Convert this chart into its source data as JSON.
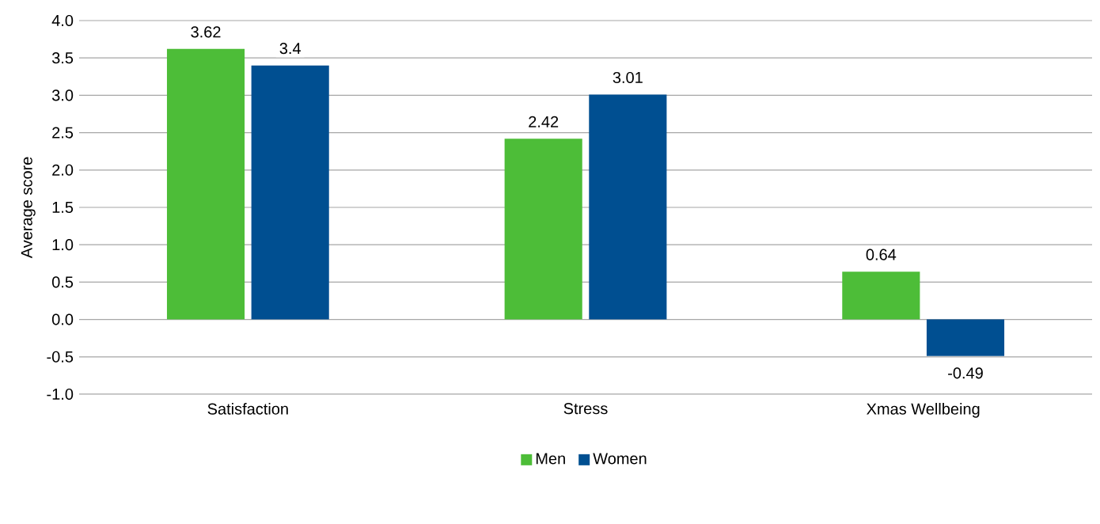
{
  "chart_data": {
    "type": "bar",
    "ylabel": "Average score",
    "categories": [
      "Satisfaction",
      "Stress",
      "Xmas Wellbeing"
    ],
    "series": [
      {
        "name": "Men",
        "color": "#4dbd38",
        "values": [
          3.62,
          2.42,
          0.64
        ]
      },
      {
        "name": "Women",
        "color": "#004f91",
        "values": [
          3.4,
          3.01,
          -0.49
        ]
      }
    ],
    "ylim": [
      -1,
      4
    ],
    "yticks": [
      {
        "value": -1,
        "label": "-1.0"
      },
      {
        "value": -0.5,
        "label": "-0.5"
      },
      {
        "value": 0,
        "label": "0.0"
      },
      {
        "value": 0.5,
        "label": "0.5"
      },
      {
        "value": 1,
        "label": "1.0"
      },
      {
        "value": 1.5,
        "label": "1.5"
      },
      {
        "value": 2,
        "label": "2.0"
      },
      {
        "value": 2.5,
        "label": "2.5"
      },
      {
        "value": 3,
        "label": "3.0"
      },
      {
        "value": 3.5,
        "label": "3.5"
      },
      {
        "value": 4,
        "label": "4.0"
      }
    ],
    "grid": "y",
    "legend": "bottom",
    "data_labels": true
  }
}
